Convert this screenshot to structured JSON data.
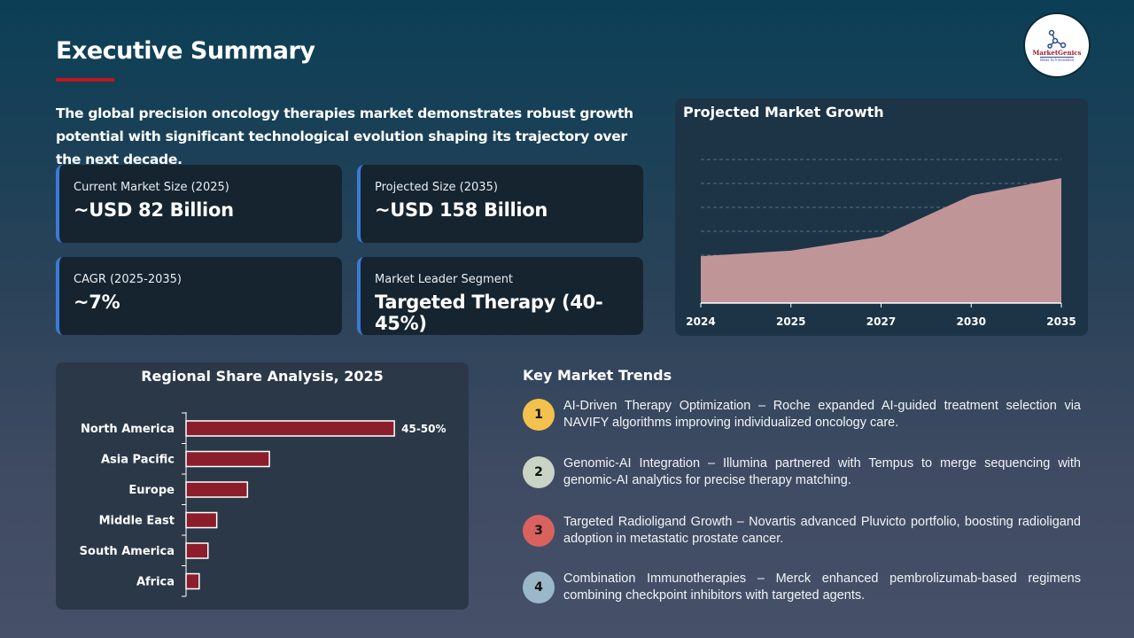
{
  "header": {
    "title": "Executive Summary",
    "logo_text": "MarketGenics",
    "logo_tagline": "Ideas to Innovation"
  },
  "intro": "The global precision oncology therapies market demonstrates robust growth potential with significant technological evolution shaping its trajectory over the next decade.",
  "kpis": [
    {
      "label": "Current Market Size (2025)",
      "value": "~USD 82 Billion"
    },
    {
      "label": "Projected Size (2035)",
      "value": "~USD 158 Billion"
    },
    {
      "label": "CAGR (2025-2035)",
      "value": "~7%"
    },
    {
      "label": "Market Leader Segment",
      "value": "Targeted Therapy (40-45%)"
    }
  ],
  "colors": {
    "accent": "#c0171f",
    "card_border": "#3a7bd5",
    "area_fill": "#c09598",
    "bar_fill": "#8b1e2a"
  },
  "chart_data": [
    {
      "type": "area",
      "title": "Projected Market Growth",
      "categories": [
        "2024",
        "2025",
        "2027",
        "2030",
        "2035"
      ],
      "values": [
        1.96,
        2.19,
        2.78,
        4.5,
        5.22
      ],
      "ylim": [
        0,
        6
      ],
      "grid": true,
      "legend": "none"
    },
    {
      "type": "bar",
      "orientation": "horizontal",
      "title": "Regional Share Analysis, 2025",
      "categories": [
        "North America",
        "Asia Pacific",
        "Europe",
        "Middle East",
        "South America",
        "Africa"
      ],
      "values": [
        47.5,
        19,
        14,
        7,
        5,
        3
      ],
      "data_labels": [
        "45-50%",
        "",
        "",
        "",
        "",
        ""
      ]
    }
  ],
  "trends": {
    "title": "Key Market Trends",
    "items": [
      {
        "num": "1",
        "color": "#f2c14e",
        "text": "AI-Driven Therapy Optimization – Roche expanded AI-guided treatment selection via NAVIFY algorithms improving individualized oncology care."
      },
      {
        "num": "2",
        "color": "#c9d3c6",
        "text": "Genomic-AI Integration – Illumina partnered with Tempus to merge sequencing with genomic-AI analytics for precise therapy matching."
      },
      {
        "num": "3",
        "color": "#d9625f",
        "text": "Targeted Radioligand Growth – Novartis advanced Pluvicto portfolio, boosting radioligand adoption in metastatic prostate cancer."
      },
      {
        "num": "4",
        "color": "#9bb8c9",
        "text": "Combination Immunotherapies – Merck enhanced pembrolizumab-based regimens combining checkpoint inhibitors with targeted agents."
      }
    ]
  }
}
